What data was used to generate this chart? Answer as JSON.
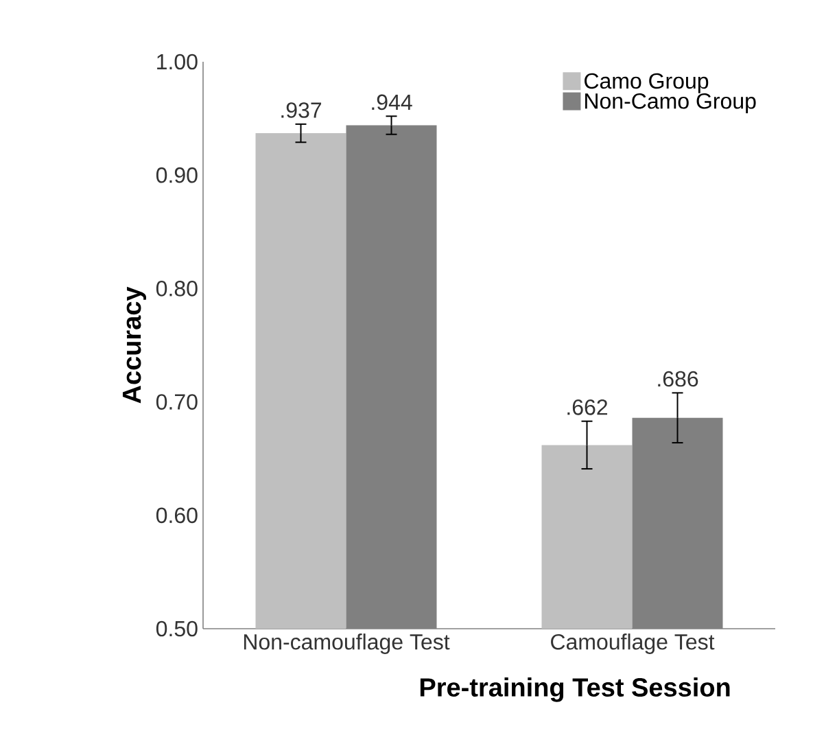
{
  "chart_data": {
    "type": "bar",
    "xlabel": "Pre-training Test Session",
    "ylabel": "Accuracy",
    "categories": [
      "Non-camouflage Test",
      "Camouflage Test"
    ],
    "series": [
      {
        "name": "Camo Group",
        "color": "#bfbfbf",
        "values": [
          0.937,
          0.662
        ],
        "errors": [
          0.008,
          0.021
        ],
        "value_labels": [
          ".937",
          ".662"
        ]
      },
      {
        "name": "Non-Camo Group",
        "color": "#808080",
        "values": [
          0.944,
          0.686
        ],
        "errors": [
          0.008,
          0.022
        ],
        "value_labels": [
          ".944",
          ".686"
        ]
      }
    ],
    "ylim": [
      0.5,
      1.0
    ],
    "yticks": [
      {
        "value": 0.5,
        "label": "0.50"
      },
      {
        "value": 0.6,
        "label": "0.60"
      },
      {
        "value": 0.7,
        "label": "0.70"
      },
      {
        "value": 0.8,
        "label": "0.80"
      },
      {
        "value": 0.9,
        "label": "0.90"
      },
      {
        "value": 1.0,
        "label": "1.00"
      }
    ],
    "grid": false,
    "legend": "top right"
  }
}
